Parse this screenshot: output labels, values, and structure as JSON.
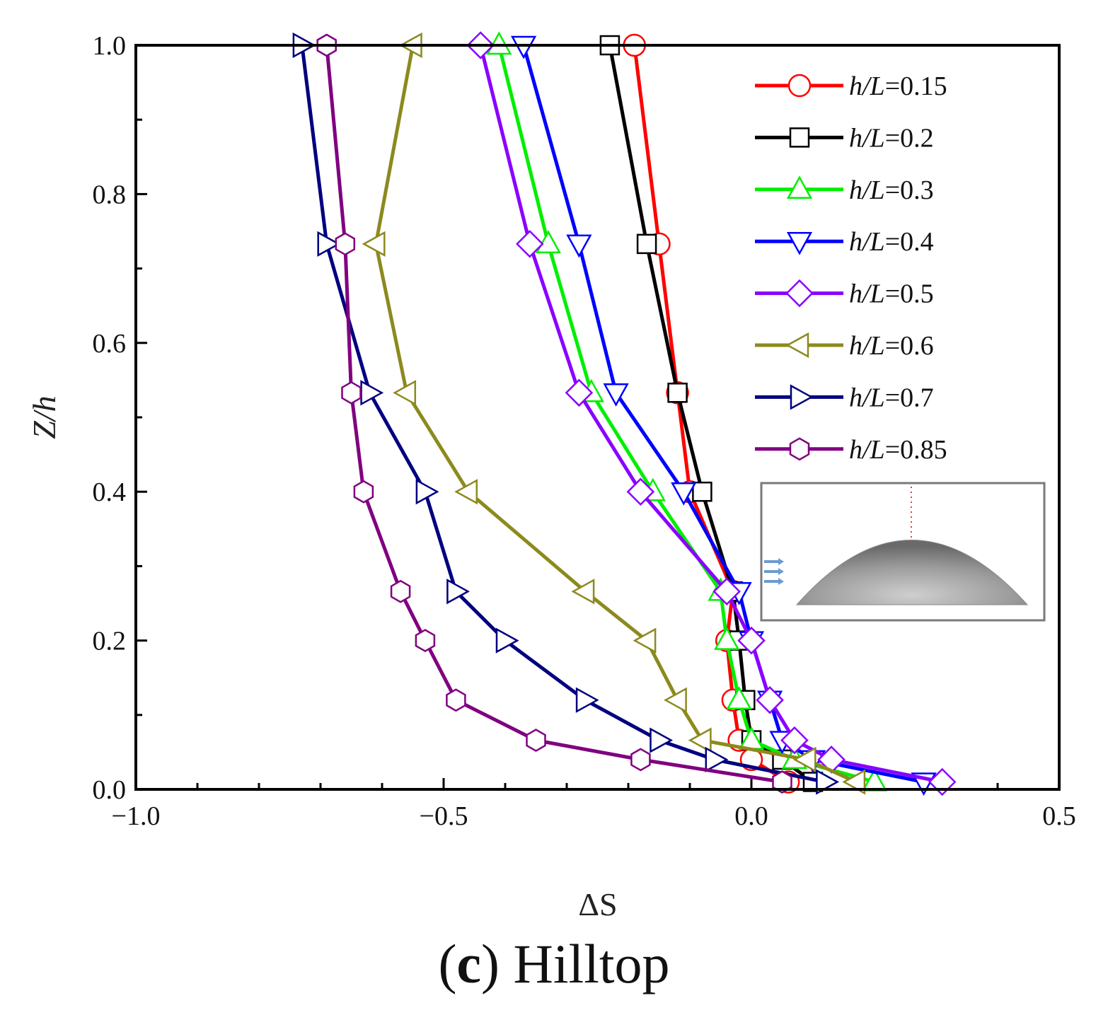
{
  "chart_data": {
    "type": "line",
    "title": "",
    "xlabel": "ΔS",
    "ylabel": "Z/h",
    "xlim": [
      -1.0,
      0.5
    ],
    "ylim": [
      0.0,
      1.0
    ],
    "xticks": [
      "−1.0",
      "−0.5",
      "0.0",
      "0.5"
    ],
    "yticks": [
      "0.0",
      "0.2",
      "0.4",
      "0.6",
      "0.8",
      "1.0"
    ],
    "grid": false,
    "legend_position": "top-right",
    "y": [
      0.01,
      0.04,
      0.066,
      0.12,
      0.2,
      0.266,
      0.4,
      0.533,
      0.733,
      1.0
    ],
    "series": [
      {
        "name": "h/L=0.15",
        "prefix": "h/L",
        "value": "=0.15",
        "color": "#ff0000",
        "marker": "circle",
        "x": [
          0.06,
          0.0,
          -0.02,
          -0.03,
          -0.04,
          -0.03,
          -0.1,
          -0.12,
          -0.15,
          -0.19
        ]
      },
      {
        "name": "h/L=0.2",
        "prefix": "h/L",
        "value": "=0.2",
        "color": "#000000",
        "marker": "square",
        "x": [
          0.1,
          0.05,
          0.0,
          -0.01,
          -0.02,
          -0.03,
          -0.08,
          -0.12,
          -0.17,
          -0.23
        ]
      },
      {
        "name": "h/L=0.3",
        "prefix": "h/L",
        "value": "=0.3",
        "color": "#00ee00",
        "marker": "triangle-up",
        "x": [
          0.2,
          0.07,
          0.0,
          -0.02,
          -0.04,
          -0.05,
          -0.16,
          -0.26,
          -0.33,
          -0.41
        ]
      },
      {
        "name": "h/L=0.4",
        "prefix": "h/L",
        "value": "=0.4",
        "color": "#0000ff",
        "marker": "triangle-down",
        "x": [
          0.28,
          0.1,
          0.05,
          0.03,
          0.0,
          -0.02,
          -0.11,
          -0.22,
          -0.28,
          -0.37
        ]
      },
      {
        "name": "h/L=0.5",
        "prefix": "h/L",
        "value": "=0.5",
        "color": "#8a00ff",
        "marker": "diamond",
        "x": [
          0.31,
          0.13,
          0.07,
          0.03,
          0.0,
          -0.04,
          -0.18,
          -0.28,
          -0.36,
          -0.44
        ]
      },
      {
        "name": "h/L=0.6",
        "prefix": "h/L",
        "value": "=0.6",
        "color": "#8c8a1e",
        "marker": "triangle-left",
        "x": [
          0.17,
          0.09,
          -0.08,
          -0.12,
          -0.17,
          -0.27,
          -0.46,
          -0.56,
          -0.61,
          -0.55
        ]
      },
      {
        "name": "h/L=0.7",
        "prefix": "h/L",
        "value": "=0.7",
        "color": "#000080",
        "marker": "triangle-right",
        "x": [
          0.12,
          -0.06,
          -0.15,
          -0.27,
          -0.4,
          -0.48,
          -0.53,
          -0.62,
          -0.69,
          -0.73
        ]
      },
      {
        "name": "h/L=0.85",
        "prefix": "h/L",
        "value": "=0.85",
        "color": "#800080",
        "marker": "hexagon",
        "x": [
          0.05,
          -0.18,
          -0.35,
          -0.48,
          -0.53,
          -0.57,
          -0.63,
          -0.65,
          -0.66,
          -0.69
        ]
      }
    ]
  },
  "caption": {
    "letter": "c",
    "text": "Hilltop"
  }
}
